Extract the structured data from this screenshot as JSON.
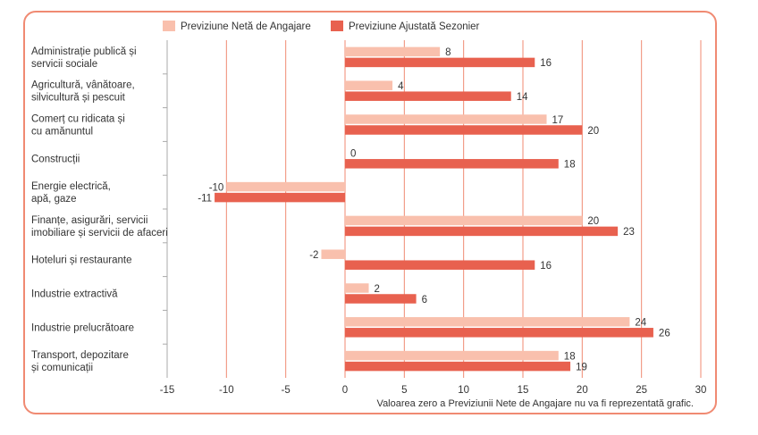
{
  "chart_data": {
    "type": "bar",
    "orientation": "horizontal",
    "categories": [
      [
        "Administrație publică și",
        "servicii sociale"
      ],
      [
        "Agricultură, vânătoare,",
        "silvicultură și pescuit"
      ],
      [
        "Comerț cu ridicata și",
        "cu amănuntul"
      ],
      [
        "Construcții"
      ],
      [
        "Energie electrică,",
        "apă, gaze"
      ],
      [
        "Finanțe, asigurări, servicii",
        "imobiliare și servicii de afaceri"
      ],
      [
        "Hoteluri și restaurante"
      ],
      [
        "Industrie extractivă"
      ],
      [
        "Industrie prelucrătoare"
      ],
      [
        "Transport, depozitare",
        "și comunicații"
      ]
    ],
    "series": [
      {
        "name": "Previziune Netă de Angajare",
        "color": "#f9c0ad",
        "values": [
          8,
          4,
          17,
          0,
          -10,
          20,
          -2,
          2,
          24,
          18
        ]
      },
      {
        "name": "Previziune Ajustată Sezonier",
        "color": "#e8614f",
        "values": [
          16,
          14,
          20,
          18,
          -11,
          23,
          16,
          6,
          26,
          19
        ]
      }
    ],
    "xlim": [
      -15,
      30
    ],
    "xticks": [
      -15,
      -10,
      -5,
      0,
      5,
      10,
      15,
      20,
      25,
      30
    ],
    "grid": true,
    "gridline_color": "#f08a72",
    "legend_position": "top",
    "note": "Valoarea zero a Previziunii Nete de Angajare nu va fi reprezentată grafic."
  }
}
